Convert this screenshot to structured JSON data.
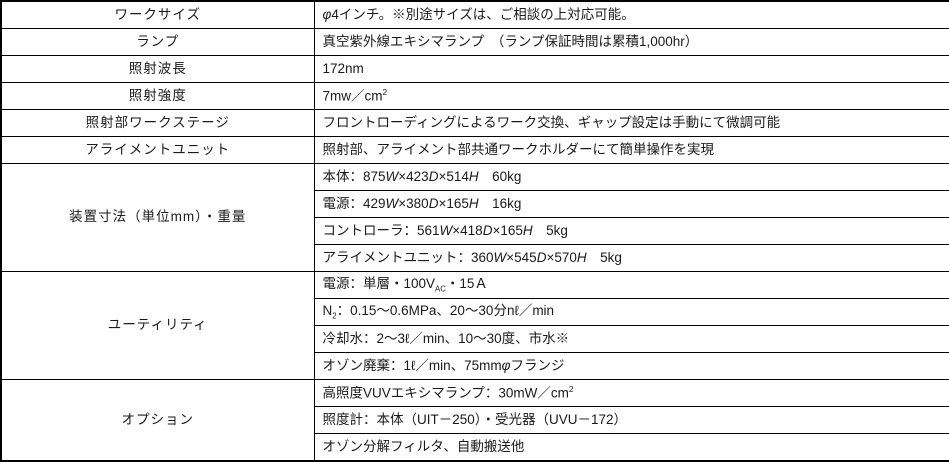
{
  "table": {
    "colors": {
      "border": "#000000",
      "text": "#1a1a1a",
      "background": "#ffffff"
    },
    "groups": [
      {
        "label": "ワークサイズ",
        "items": [
          [
            {
              "t": "φ",
              "s": "i"
            },
            {
              "t": "4インチ。※別途サイズは、ご相談の上対応可能。"
            }
          ]
        ]
      },
      {
        "label": "ランプ",
        "items": [
          [
            {
              "t": "真空紫外線エキシマランプ　（ランプ保証時間は累積1,000hr）"
            }
          ]
        ]
      },
      {
        "label": "照射波長",
        "items": [
          [
            {
              "t": "172nm"
            }
          ]
        ]
      },
      {
        "label": "照射強度",
        "items": [
          [
            {
              "t": "7mw／cm"
            },
            {
              "t": "2",
              "s": "sup"
            }
          ]
        ]
      },
      {
        "label": "照射部ワークステージ",
        "items": [
          [
            {
              "t": "フロントローディングによるワーク交換、ギャップ設定は手動にて微調可能"
            }
          ]
        ]
      },
      {
        "label": "アライメントユニット",
        "items": [
          [
            {
              "t": "照射部、アライメント部共通ワークホルダーにて簡単操作を実現"
            }
          ]
        ]
      },
      {
        "label": "装置寸法（単位mm）・重量",
        "items": [
          [
            {
              "t": "本体：875"
            },
            {
              "t": "W",
              "s": "i"
            },
            {
              "t": "×423"
            },
            {
              "t": "D",
              "s": "i"
            },
            {
              "t": "×514"
            },
            {
              "t": "H",
              "s": "i"
            },
            {
              "t": "　60kg"
            }
          ],
          [
            {
              "t": "電源：429"
            },
            {
              "t": "W",
              "s": "i"
            },
            {
              "t": "×380"
            },
            {
              "t": "D",
              "s": "i"
            },
            {
              "t": "×165"
            },
            {
              "t": "H",
              "s": "i"
            },
            {
              "t": "　16kg"
            }
          ],
          [
            {
              "t": "コントローラ：561"
            },
            {
              "t": "W",
              "s": "i"
            },
            {
              "t": "×418"
            },
            {
              "t": "D",
              "s": "i"
            },
            {
              "t": "×165"
            },
            {
              "t": "H",
              "s": "i"
            },
            {
              "t": "　5kg"
            }
          ],
          [
            {
              "t": "アライメントユニット：360"
            },
            {
              "t": "W",
              "s": "i"
            },
            {
              "t": "×545"
            },
            {
              "t": "D",
              "s": "i"
            },
            {
              "t": "×570"
            },
            {
              "t": "H",
              "s": "i"
            },
            {
              "t": "　5kg"
            }
          ]
        ]
      },
      {
        "label": "ユーティリティ",
        "items": [
          [
            {
              "t": "電源：単層・100V"
            },
            {
              "t": "AC",
              "s": "sub"
            },
            {
              "t": "・15Ａ"
            }
          ],
          [
            {
              "t": "N"
            },
            {
              "t": "2",
              "s": "sub"
            },
            {
              "t": "：0.15～0.6MPa、20～30分nℓ／min"
            }
          ],
          [
            {
              "t": "冷却水：2～3ℓ／min、10～30度、市水※"
            }
          ],
          [
            {
              "t": "オゾン廃棄：1ℓ／min、75mm"
            },
            {
              "t": "φ",
              "s": "i"
            },
            {
              "t": "フランジ"
            }
          ]
        ]
      },
      {
        "label": "オプション",
        "items": [
          [
            {
              "t": "高照度VUVエキシマランプ：30mW／cm"
            },
            {
              "t": "2",
              "s": "sup"
            }
          ],
          [
            {
              "t": "照度計：本体（UIT－250）・受光器（UVU－172）"
            }
          ],
          [
            {
              "t": "オゾン分解フィルタ、自動搬送他"
            }
          ]
        ]
      }
    ]
  }
}
